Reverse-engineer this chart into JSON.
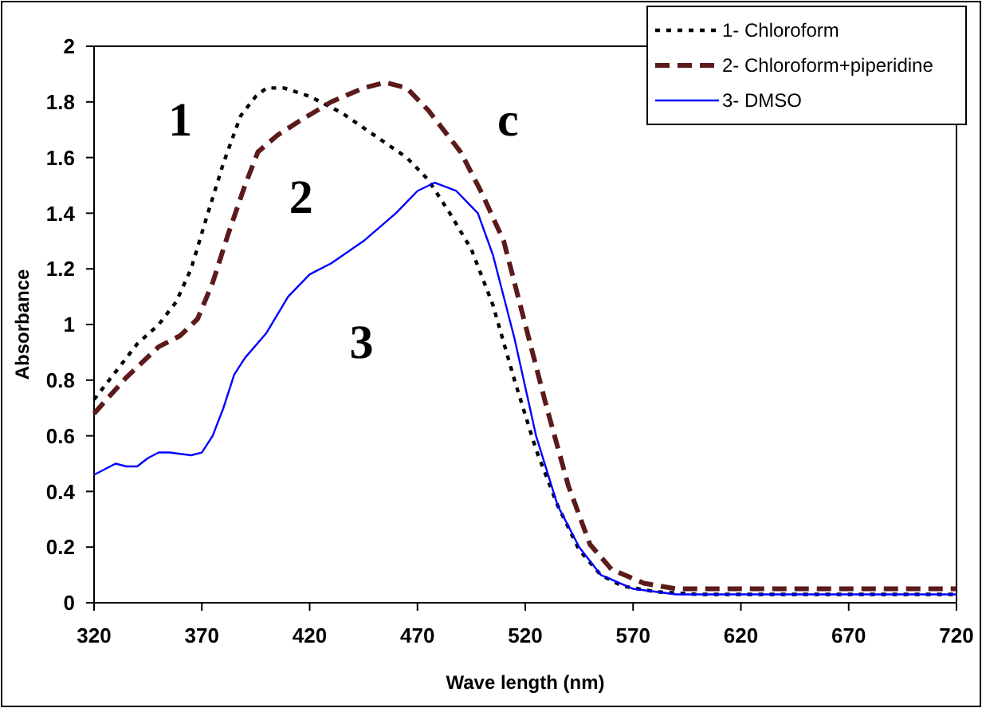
{
  "chart_data": {
    "type": "line",
    "xlabel": "Wave length (nm)",
    "ylabel": "Absorbance",
    "xlim": [
      320,
      720
    ],
    "xticks": [
      320,
      370,
      420,
      470,
      520,
      570,
      620,
      670,
      720
    ],
    "ylim": [
      0,
      2
    ],
    "yticks": [
      0,
      0.2,
      0.4,
      0.6,
      0.8,
      1,
      1.2,
      1.4,
      1.6,
      1.8,
      2
    ],
    "grid": false,
    "legend": "top right",
    "series": [
      {
        "name": "1- Chloroform",
        "color": "#000000",
        "line_style": "dotted",
        "x": [
          320,
          330,
          340,
          350,
          358,
          365,
          372,
          380,
          388,
          395,
          400,
          408,
          420,
          435,
          450,
          465,
          475,
          485,
          495,
          505,
          515,
          525,
          535,
          545,
          555,
          565,
          580,
          600,
          720
        ],
        "values": [
          0.73,
          0.83,
          0.93,
          1.0,
          1.08,
          1.2,
          1.38,
          1.58,
          1.75,
          1.82,
          1.85,
          1.85,
          1.82,
          1.76,
          1.68,
          1.6,
          1.52,
          1.4,
          1.27,
          1.07,
          0.8,
          0.55,
          0.35,
          0.19,
          0.1,
          0.06,
          0.04,
          0.03,
          0.03
        ]
      },
      {
        "name": "2- Chloroform+piperidine",
        "color": "#5c1a1a",
        "line_style": "dashed",
        "x": [
          320,
          335,
          350,
          360,
          368,
          375,
          382,
          390,
          396,
          405,
          415,
          430,
          445,
          455,
          465,
          475,
          490,
          500,
          510,
          520,
          530,
          540,
          550,
          560,
          575,
          590,
          720
        ],
        "values": [
          0.68,
          0.81,
          0.92,
          0.96,
          1.02,
          1.15,
          1.32,
          1.5,
          1.62,
          1.68,
          1.73,
          1.8,
          1.85,
          1.87,
          1.85,
          1.77,
          1.62,
          1.47,
          1.3,
          1.0,
          0.7,
          0.42,
          0.21,
          0.12,
          0.07,
          0.05,
          0.05
        ]
      },
      {
        "name": "3- DMSO",
        "color": "#0000ff",
        "line_style": "solid",
        "x": [
          320,
          330,
          335,
          340,
          345,
          350,
          355,
          365,
          370,
          375,
          380,
          385,
          390,
          400,
          410,
          420,
          430,
          445,
          460,
          470,
          478,
          488,
          498,
          505,
          515,
          525,
          535,
          545,
          555,
          570,
          590,
          720
        ],
        "values": [
          0.46,
          0.5,
          0.49,
          0.49,
          0.52,
          0.54,
          0.54,
          0.53,
          0.54,
          0.6,
          0.7,
          0.82,
          0.88,
          0.97,
          1.1,
          1.18,
          1.22,
          1.3,
          1.4,
          1.48,
          1.51,
          1.48,
          1.4,
          1.25,
          0.95,
          0.6,
          0.35,
          0.2,
          0.1,
          0.05,
          0.03,
          0.03
        ]
      }
    ],
    "annotations": [
      "1",
      "2",
      "3",
      "c"
    ]
  }
}
